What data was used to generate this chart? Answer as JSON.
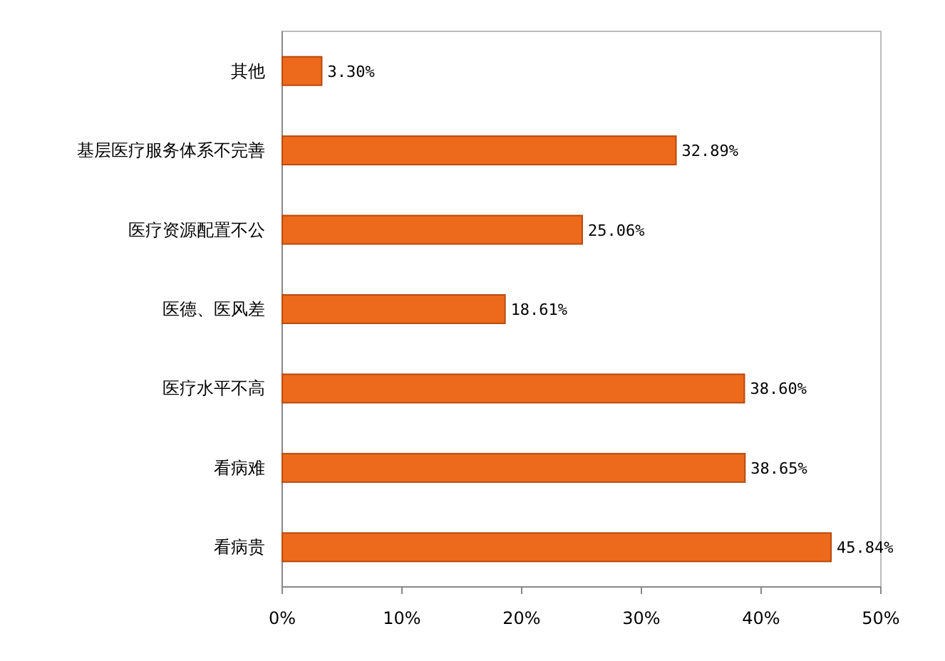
{
  "chart_data": {
    "type": "bar",
    "orientation": "horizontal",
    "categories": [
      "其他",
      "基层医疗服务体系不完善",
      "医疗资源配置不公",
      "医德、医风差",
      "医疗水平不高",
      "看病难",
      "看病贵"
    ],
    "values": [
      3.3,
      32.89,
      25.06,
      18.61,
      38.6,
      38.65,
      45.84
    ],
    "value_labels": [
      "3.30%",
      "32.89%",
      "25.06%",
      "18.61%",
      "38.60%",
      "38.65%",
      "45.84%"
    ],
    "color": "#ed6a1c",
    "xlim": [
      0,
      50
    ],
    "xticks": [
      {
        "value": 0,
        "label": "0%"
      },
      {
        "value": 10,
        "label": "10%"
      },
      {
        "value": 20,
        "label": "20%"
      },
      {
        "value": 30,
        "label": "30%"
      },
      {
        "value": 40,
        "label": "40%"
      },
      {
        "value": 50,
        "label": "50%"
      }
    ]
  }
}
